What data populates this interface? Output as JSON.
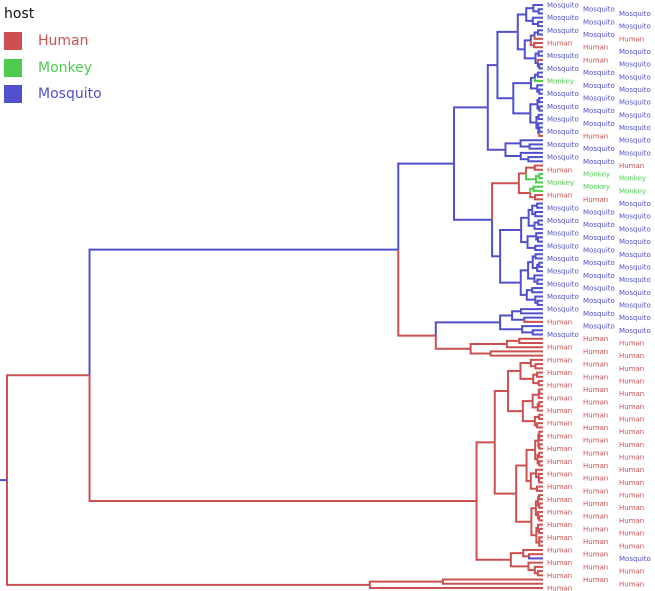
{
  "legend": {
    "title": "host",
    "items": [
      {
        "label": "Human",
        "color": "#cc5050"
      },
      {
        "label": "Monkey",
        "color": "#4fcc4f"
      },
      {
        "label": "Mosquito",
        "color": "#5050cc"
      }
    ]
  },
  "tree": {
    "t": 0,
    "host": "Human",
    "c": [
      {
        "t": 15.4,
        "host": "Human",
        "c": [
          {
            "t": 73,
            "host": "Mosquito",
            "c": [
              {
                "t": 83.4,
                "host": "Mosquito",
                "c": [
                  {
                    "t": 89.7,
                    "host": "Mosquito",
                    "c": [
                      {
                        "t": 91.5,
                        "host": "Mosquito",
                        "tips": [
                          [
                            "Mosquito",
                            8
                          ],
                          [
                            "Human",
                            3
                          ],
                          [
                            "Mosquito",
                            2
                          ],
                          [
                            "Human",
                            1
                          ],
                          [
                            "Mosquito",
                            4
                          ],
                          [
                            "Monkey",
                            1
                          ],
                          [
                            "Mosquito",
                            12
                          ],
                          [
                            "Human",
                            1
                          ]
                        ]
                      },
                      {
                        "t": 93,
                        "host": "Mosquito",
                        "tips": [
                          [
                            "Mosquito",
                            6
                          ]
                        ]
                      }
                    ]
                  },
                  {
                    "t": 90.5,
                    "host": "Mosquito",
                    "c": [
                      {
                        "t": 95.5,
                        "host": "Human",
                        "tips": [
                          [
                            "Human",
                            2
                          ],
                          [
                            "Monkey",
                            5
                          ],
                          [
                            "Human",
                            2
                          ]
                        ]
                      },
                      {
                        "t": 92,
                        "host": "Mosquito",
                        "tips": [
                          [
                            "Mosquito",
                            25
                          ]
                        ]
                      }
                    ]
                  }
                ]
              },
              {
                "t": 80,
                "host": "Human",
                "c": [
                  {
                    "t": 92,
                    "host": "Mosquito",
                    "tips": [
                      [
                        "Mosquito",
                        3
                      ],
                      [
                        "Human",
                        1
                      ],
                      [
                        "Mosquito",
                        3
                      ]
                    ]
                  },
                  {
                    "t": 86.5,
                    "host": "Human",
                    "tips": [
                      [
                        "Human",
                        5
                      ]
                    ]
                  }
                ]
              }
            ]
          },
          {
            "t": 87.6,
            "host": "Human",
            "c": [
              {
                "t": 91,
                "host": "Human",
                "tips": [
                  [
                    "Human",
                    45
                  ]
                ]
              },
              {
                "t": 94,
                "host": "Human",
                "tips": [
                  [
                    "Human",
                    2
                  ],
                  [
                    "Mosquito",
                    1
                  ],
                  [
                    "Human",
                    4
                  ]
                ]
              }
            ]
          }
        ]
      },
      {
        "t": 67.7,
        "host": "Human",
        "tips": [
          [
            "Human",
            3
          ]
        ]
      }
    ]
  }
}
